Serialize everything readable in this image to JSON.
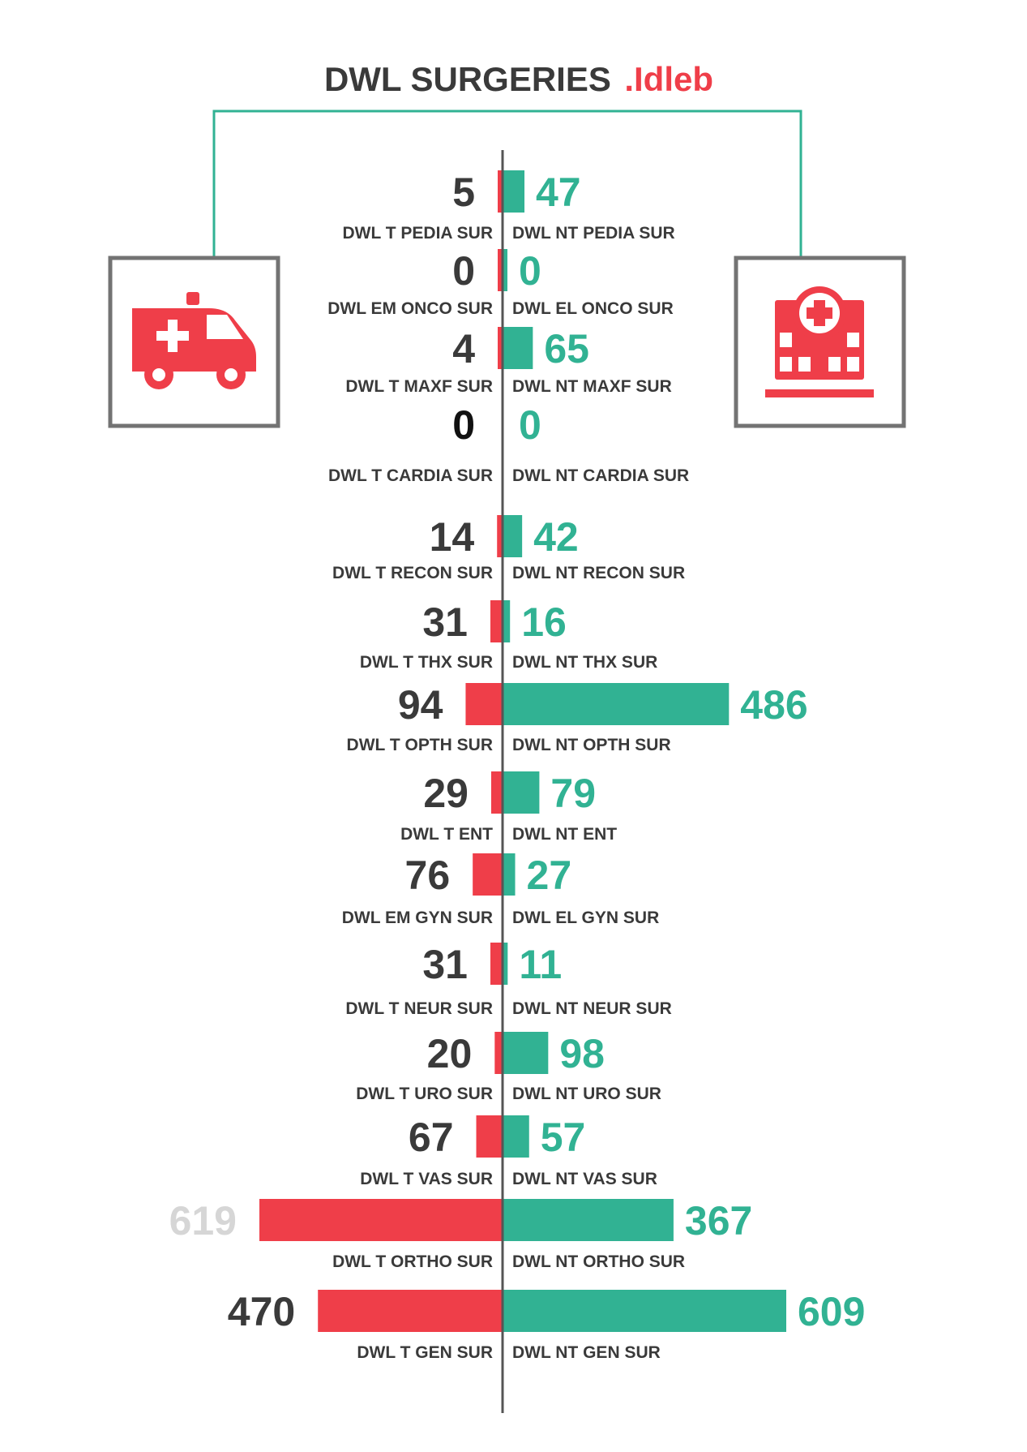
{
  "title": {
    "main": "DWL SURGERIES",
    "accent": ".Idleb"
  },
  "icons": {
    "left": "ambulance-icon",
    "right": "hospital-icon"
  },
  "colors": {
    "left_bar": "#ef3e49",
    "right_bar": "#31b293",
    "left_value": "#3a3a3a",
    "right_value": "#31b293",
    "connector": "#31b293",
    "axis": "#555555",
    "icon_frame": "#737373",
    "icon_fill": "#ef3e49",
    "title_accent": "#ef3e49"
  },
  "chart_data": {
    "type": "bar",
    "orientation": "horizontal-diverging",
    "rows": [
      {
        "left_label": "DWL T PEDIA SUR",
        "left_value": 5,
        "right_label": "DWL NT PEDIA SUR",
        "right_value": 47
      },
      {
        "left_label": "DWL EM ONCO SUR",
        "left_value": 0,
        "right_label": "DWL EL ONCO SUR",
        "right_value": 0
      },
      {
        "left_label": "DWL T MAXF SUR",
        "left_value": 4,
        "right_label": "DWL NT MAXF SUR",
        "right_value": 65
      },
      {
        "left_label": "DWL T CARDIA SUR",
        "left_value": 0,
        "right_label": "DWL NT CARDIA SUR",
        "right_value": 0
      },
      {
        "left_label": "DWL T RECON SUR",
        "left_value": 14,
        "right_label": "DWL NT RECON SUR",
        "right_value": 42
      },
      {
        "left_label": "DWL T THX SUR",
        "left_value": 31,
        "right_label": "DWL NT THX SUR",
        "right_value": 16
      },
      {
        "left_label": "DWL T OPTH SUR",
        "left_value": 94,
        "right_label": "DWL NT OPTH SUR",
        "right_value": 486
      },
      {
        "left_label": "DWL T ENT",
        "left_value": 29,
        "right_label": "DWL NT ENT",
        "right_value": 79
      },
      {
        "left_label": "DWL EM GYN SUR",
        "left_value": 76,
        "right_label": "DWL EL GYN SUR",
        "right_value": 27
      },
      {
        "left_label": "DWL T NEUR SUR",
        "left_value": 31,
        "right_label": "DWL NT NEUR SUR",
        "right_value": 11
      },
      {
        "left_label": "DWL T URO SUR",
        "left_value": 20,
        "right_label": "DWL NT URO SUR",
        "right_value": 98
      },
      {
        "left_label": "DWL T VAS SUR",
        "left_value": 67,
        "right_label": "DWL NT VAS SUR",
        "right_value": 57
      },
      {
        "left_label": "DWL T ORTHO SUR",
        "left_value": 619,
        "right_label": "DWL NT ORTHO SUR",
        "right_value": 367
      },
      {
        "left_label": "DWL T GEN SUR",
        "left_value": 470,
        "right_label": "DWL NT GEN SUR",
        "right_value": 609
      }
    ]
  }
}
